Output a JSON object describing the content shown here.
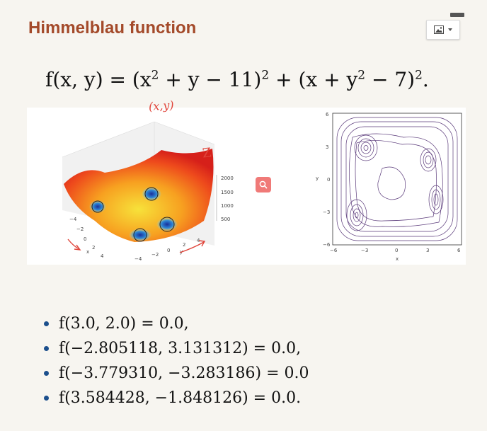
{
  "slide": {
    "title": "Himmelblau function",
    "formula": {
      "lhs": "f(x, y)",
      "eq": "=",
      "term1_open": "(x",
      "term1_exp": "2",
      "term1_rest": " + y − 11)",
      "term1_outer_exp": "2",
      "plus": "+",
      "term2_open": "(x + y",
      "term2_exp": "2",
      "term2_rest": " − 7)",
      "term2_outer_exp": "2",
      "end": "."
    },
    "annotations": {
      "xy_note": "(x,y)",
      "z_note": "Z"
    },
    "minima": [
      "f(3.0, 2.0) = 0.0,",
      "f(−2.805118, 3.131312) = 0.0,",
      "f(−3.779310, −3.283186) = 0.0",
      "f(3.584428, −1.848126) = 0.0."
    ],
    "toolbar": {
      "image_icon": "image-icon",
      "dropdown_icon": "chevron-down-icon"
    },
    "search_icon": "search-icon"
  },
  "surface_plot": {
    "z_ticks": [
      "2000",
      "1500",
      "1000",
      "500"
    ],
    "x_ticks": [
      "−4",
      "−2",
      "0",
      "2",
      "4"
    ],
    "y_ticks": [
      "−4",
      "−2",
      "0",
      "2",
      "4"
    ],
    "x_label": "x",
    "y_label": "y"
  },
  "contour_plot": {
    "x_ticks": [
      "−6",
      "−3",
      "0",
      "3",
      "6"
    ],
    "y_ticks": [
      "6",
      "3",
      "0",
      "−3",
      "−6"
    ],
    "x_label": "x",
    "y_label": "y"
  },
  "colors": {
    "title": "#a44a2a",
    "annotation": "#e0443a",
    "contour": "#5a3a7a",
    "bullet": "#1c4f8c"
  }
}
